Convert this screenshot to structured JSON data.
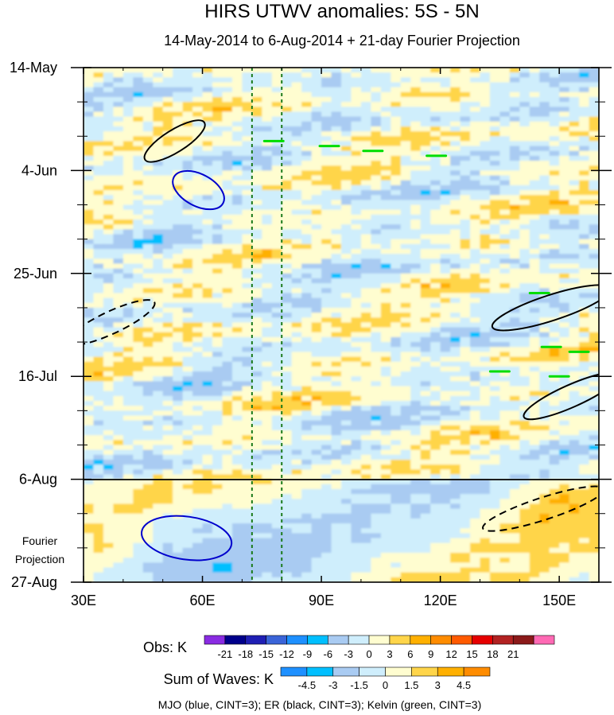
{
  "chart_data": {
    "type": "heatmap",
    "title": "HIRS UTWV anomalies: 5S - 5N",
    "subtitle": "14-May-2014 to 6-Aug-2014 + 21-day Fourier Projection",
    "x_ticks": [
      "30E",
      "60E",
      "90E",
      "120E",
      "150E"
    ],
    "x_tick_values": [
      30,
      60,
      90,
      120,
      150
    ],
    "xlim": [
      30,
      160
    ],
    "y_ticks": [
      "14-May",
      "4-Jun",
      "25-Jun",
      "16-Jul",
      "6-Aug",
      "27-Aug"
    ],
    "y_tick_days": [
      0,
      21,
      42,
      63,
      84,
      105
    ],
    "ylim_days": [
      0,
      105
    ],
    "obs_end_label": "6-Aug",
    "projection_label": [
      "Fourier",
      "Projection"
    ],
    "reference_lines_lon": [
      72.5,
      80
    ],
    "obs_legend": {
      "label": "Obs: K",
      "levels": [
        "-21",
        "-18",
        "-15",
        "-12",
        "-9",
        "-6",
        "-3",
        "0",
        "3",
        "6",
        "9",
        "12",
        "15",
        "18",
        "21"
      ],
      "colors": [
        "#8a2be2",
        "#00008b",
        "#1f1fb4",
        "#3a64d8",
        "#1e90ff",
        "#00bfff",
        "#a9cbf2",
        "#cfeefc",
        "#fffdd0",
        "#ffd54a",
        "#ffb000",
        "#ff8c00",
        "#ff5a00",
        "#e60000",
        "#b22222",
        "#8b1a1a",
        "#ff69b4"
      ]
    },
    "wave_legend": {
      "label": "Sum of Waves: K",
      "levels": [
        "-4.5",
        "-3",
        "-1.5",
        "0",
        "1.5",
        "3",
        "4.5"
      ],
      "colors": [
        "#1e90ff",
        "#00bfff",
        "#a9cbf2",
        "#cfeefc",
        "#fffdd0",
        "#ffd54a",
        "#ffb000",
        "#ff8c00"
      ]
    },
    "contour_note": "MJO (blue, CINT=3); ER (black, CINT=3); Kelvin (green, CINT=3)",
    "contours": [
      {
        "wave": "ER",
        "color": "#000000",
        "center_lon": 53,
        "center_day": 15,
        "sign": "positive"
      },
      {
        "wave": "MJO",
        "color": "#0000cc",
        "center_lon": 59,
        "center_day": 25,
        "sign": "positive"
      },
      {
        "wave": "MJO",
        "color": "#0000cc",
        "center_lon": 56,
        "center_day": 96,
        "sign": "positive"
      },
      {
        "wave": "ER",
        "color": "#000000",
        "center_lon": 37,
        "center_day": 52,
        "sign": "negative"
      },
      {
        "wave": "ER",
        "color": "#000000",
        "center_lon": 148,
        "center_day": 49,
        "sign": "positive"
      },
      {
        "wave": "ER",
        "color": "#000000",
        "center_lon": 153,
        "center_day": 67,
        "sign": "positive"
      },
      {
        "wave": "ER",
        "color": "#000000",
        "center_lon": 146,
        "center_day": 90,
        "sign": "negative"
      }
    ]
  }
}
